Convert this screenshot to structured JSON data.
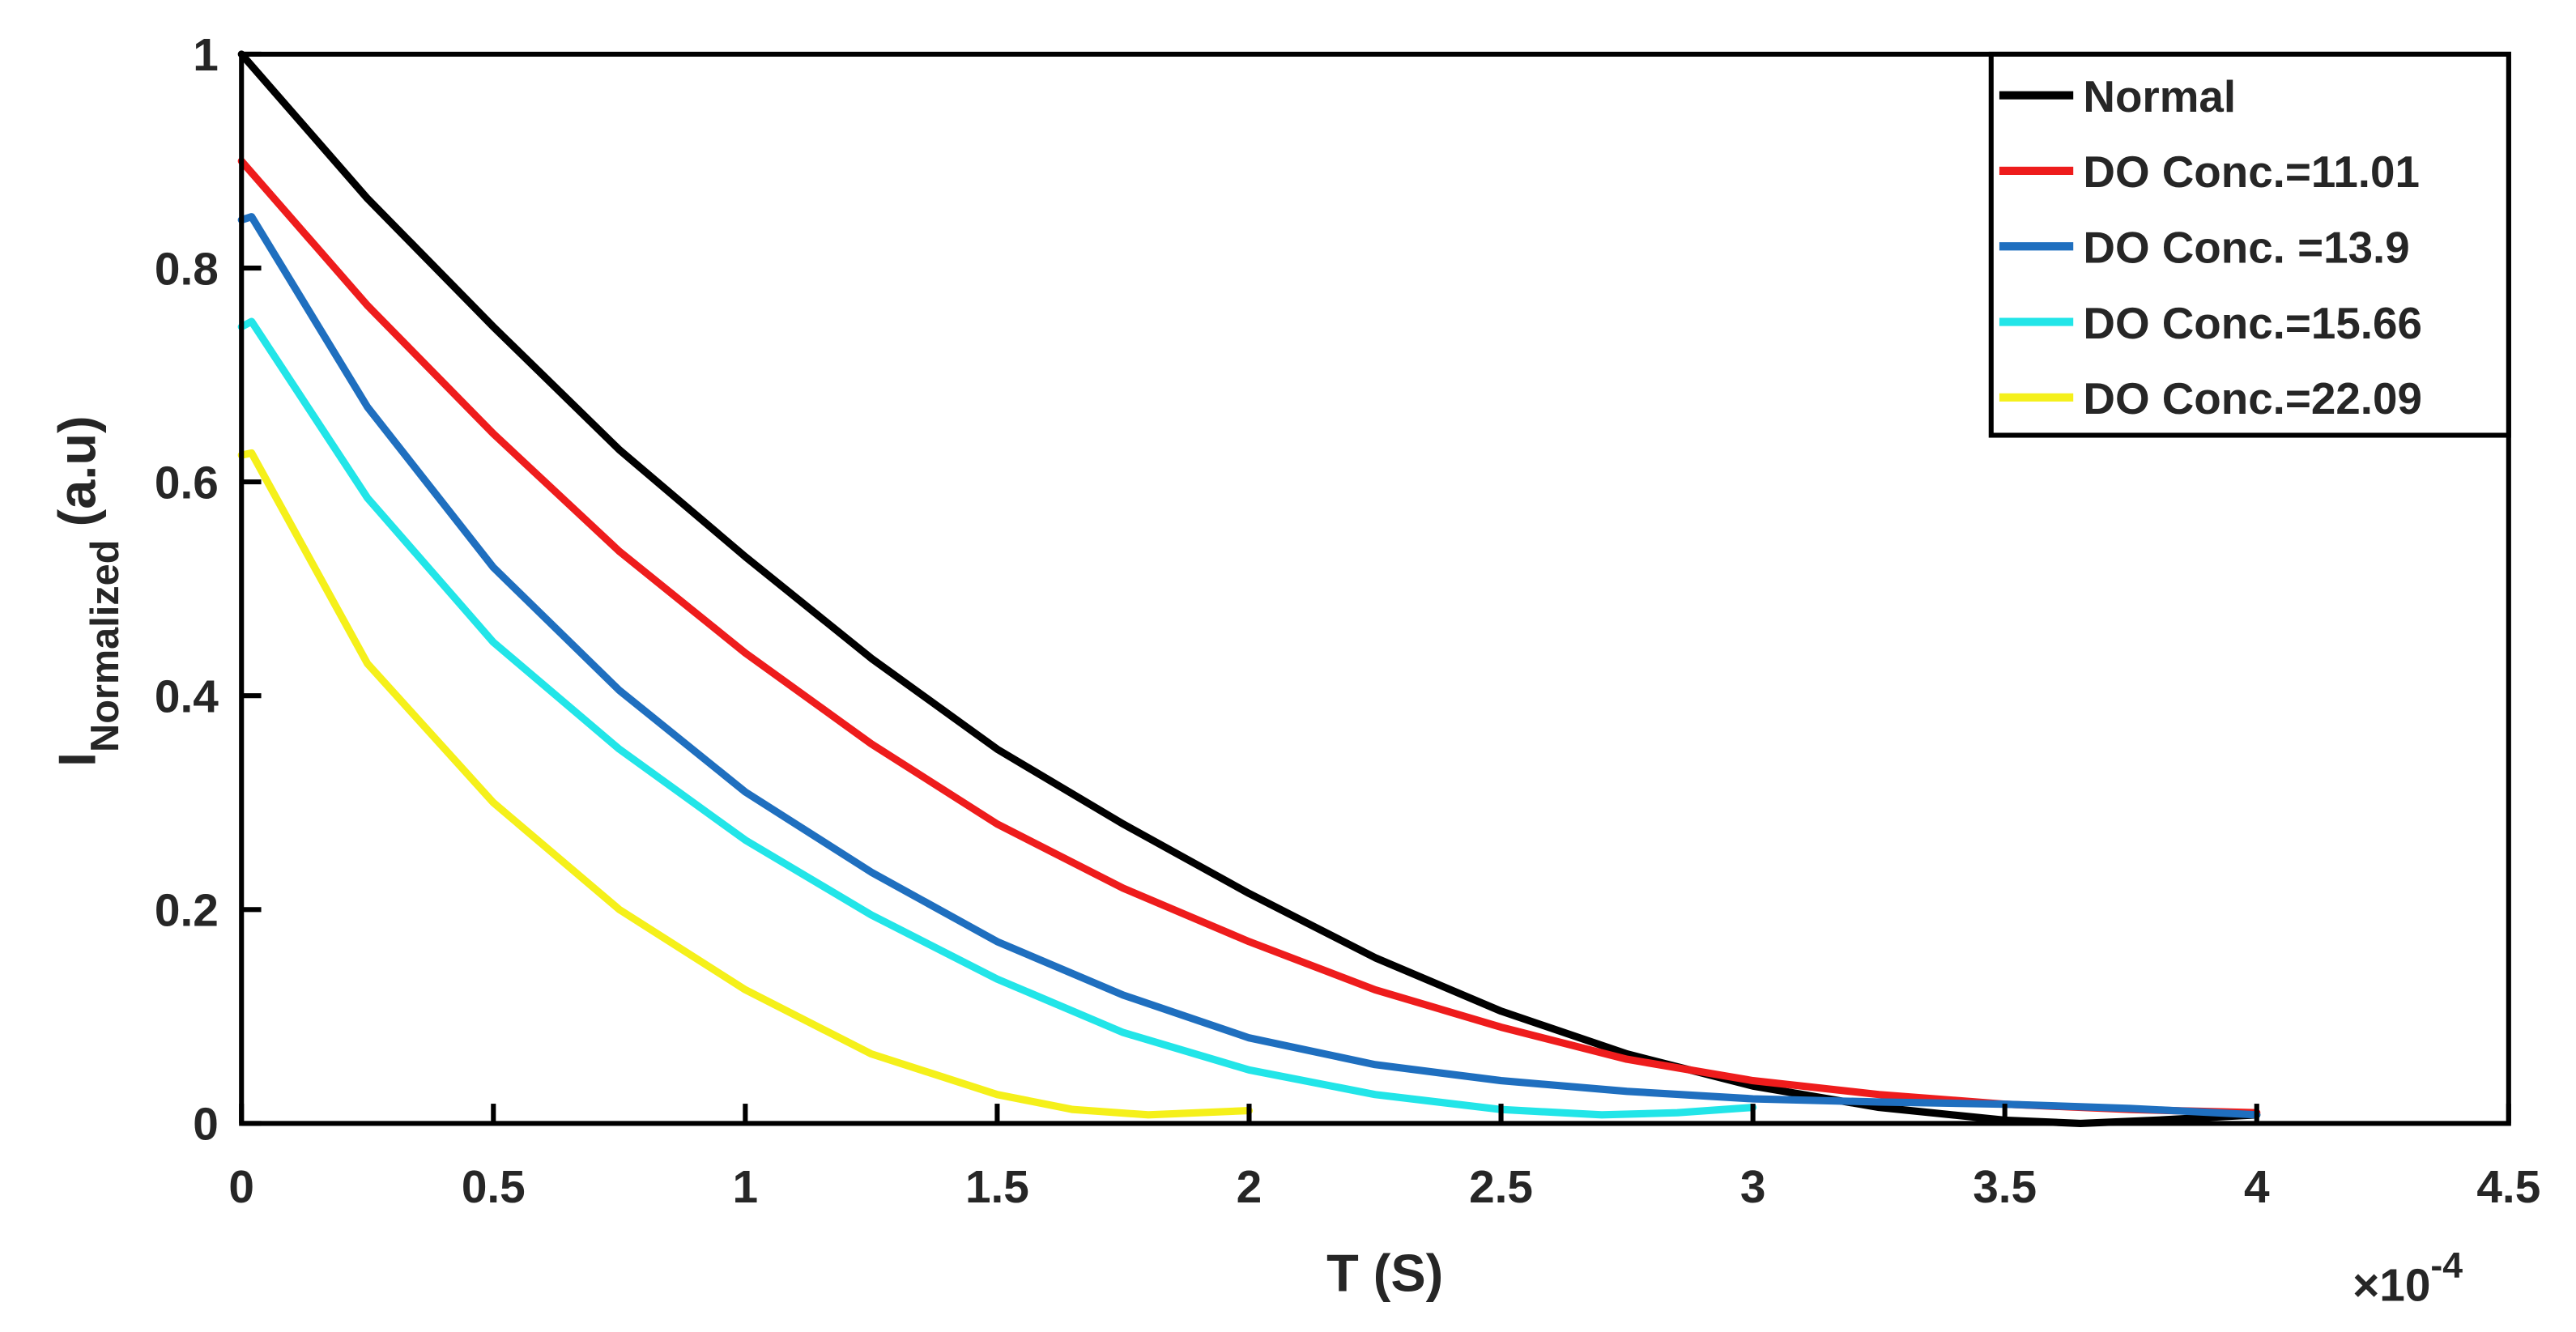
{
  "chart_data": {
    "type": "line",
    "xlabel": "T (S)",
    "ylabel": "I",
    "ylabel_subscript": "Normalized",
    "ylabel_suffix": "(a.u)",
    "x_scale_base": "×10",
    "x_scale_exponent": "-4",
    "xlim": [
      0,
      4.5
    ],
    "ylim": [
      0,
      1
    ],
    "xticks": [
      0,
      0.5,
      1,
      1.5,
      2,
      2.5,
      3,
      3.5,
      4,
      4.5
    ],
    "yticks": [
      0,
      0.2,
      0.4,
      0.6,
      0.8,
      1
    ],
    "legend": "upper right",
    "series": [
      {
        "name": "Normal",
        "color": "#000000",
        "x": [
          0,
          0.25,
          0.5,
          0.75,
          1,
          1.25,
          1.5,
          1.75,
          2,
          2.25,
          2.5,
          2.75,
          3,
          3.25,
          3.5,
          3.65,
          3.8,
          4
        ],
        "values": [
          1.0,
          0.865,
          0.745,
          0.63,
          0.53,
          0.435,
          0.35,
          0.28,
          0.215,
          0.155,
          0.105,
          0.065,
          0.035,
          0.015,
          0.003,
          0.0,
          0.003,
          0.008
        ]
      },
      {
        "name": "DO Conc.=11.01",
        "color": "#ee1c1c",
        "x": [
          0,
          0.25,
          0.5,
          0.75,
          1,
          1.25,
          1.5,
          1.75,
          2,
          2.25,
          2.5,
          2.75,
          3,
          3.25,
          3.5,
          3.75,
          4
        ],
        "values": [
          0.9,
          0.765,
          0.645,
          0.535,
          0.44,
          0.355,
          0.28,
          0.22,
          0.17,
          0.125,
          0.09,
          0.06,
          0.04,
          0.027,
          0.018,
          0.013,
          0.01
        ]
      },
      {
        "name": "DO Conc. =13.9",
        "color": "#1f6fbf",
        "x": [
          0,
          0.02,
          0.25,
          0.5,
          0.75,
          1,
          1.25,
          1.5,
          1.75,
          2,
          2.25,
          2.5,
          2.75,
          3,
          3.25,
          3.5,
          3.75,
          4
        ],
        "values": [
          0.845,
          0.848,
          0.67,
          0.52,
          0.405,
          0.31,
          0.235,
          0.17,
          0.12,
          0.08,
          0.055,
          0.04,
          0.03,
          0.023,
          0.02,
          0.018,
          0.014,
          0.008
        ]
      },
      {
        "name": "DO Conc.=15.66",
        "color": "#22e5e8",
        "x": [
          0,
          0.02,
          0.25,
          0.5,
          0.75,
          1,
          1.25,
          1.5,
          1.75,
          2,
          2.25,
          2.5,
          2.7,
          2.85,
          3
        ],
        "values": [
          0.745,
          0.75,
          0.585,
          0.45,
          0.35,
          0.265,
          0.195,
          0.135,
          0.085,
          0.05,
          0.027,
          0.013,
          0.008,
          0.01,
          0.015
        ]
      },
      {
        "name": "DO Conc.=22.09",
        "color": "#f5f01a",
        "x": [
          0,
          0.02,
          0.25,
          0.5,
          0.75,
          1,
          1.25,
          1.5,
          1.65,
          1.8,
          2
        ],
        "values": [
          0.625,
          0.627,
          0.43,
          0.3,
          0.2,
          0.125,
          0.065,
          0.027,
          0.013,
          0.008,
          0.012
        ]
      }
    ]
  }
}
